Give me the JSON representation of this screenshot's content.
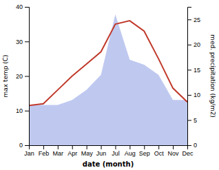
{
  "chart_data": {
    "type": "line",
    "x_label": "date (month)",
    "y_label": "max temp (C)",
    "y2_label": "med. precipitation (kg/m2)",
    "categories": [
      "Jan",
      "Feb",
      "Mar",
      "Apr",
      "May",
      "Jun",
      "Jul",
      "Aug",
      "Sep",
      "Oct",
      "Nov",
      "Dec"
    ],
    "series": [
      {
        "type": "area",
        "axis": "y2",
        "color": "#bfc9f0",
        "values": [
          8.0,
          8.0,
          8.0,
          9.0,
          11.0,
          14.0,
          26.0,
          17.0,
          16.0,
          14.0,
          9.0,
          9.0
        ]
      },
      {
        "type": "line",
        "color": "#c0392b",
        "values": [
          11.5,
          12.0,
          16.0,
          20.0,
          23.5,
          27.0,
          35.0,
          36.0,
          33.0,
          25.0,
          16.5,
          12.5
        ]
      }
    ],
    "ylim": [
      0,
      40
    ],
    "yticks": [
      0,
      10,
      20,
      30,
      40
    ],
    "y2lim": [
      0,
      27.5
    ],
    "y2ticks": [
      0,
      5,
      10,
      15,
      20,
      25
    ],
    "grid": false
  }
}
